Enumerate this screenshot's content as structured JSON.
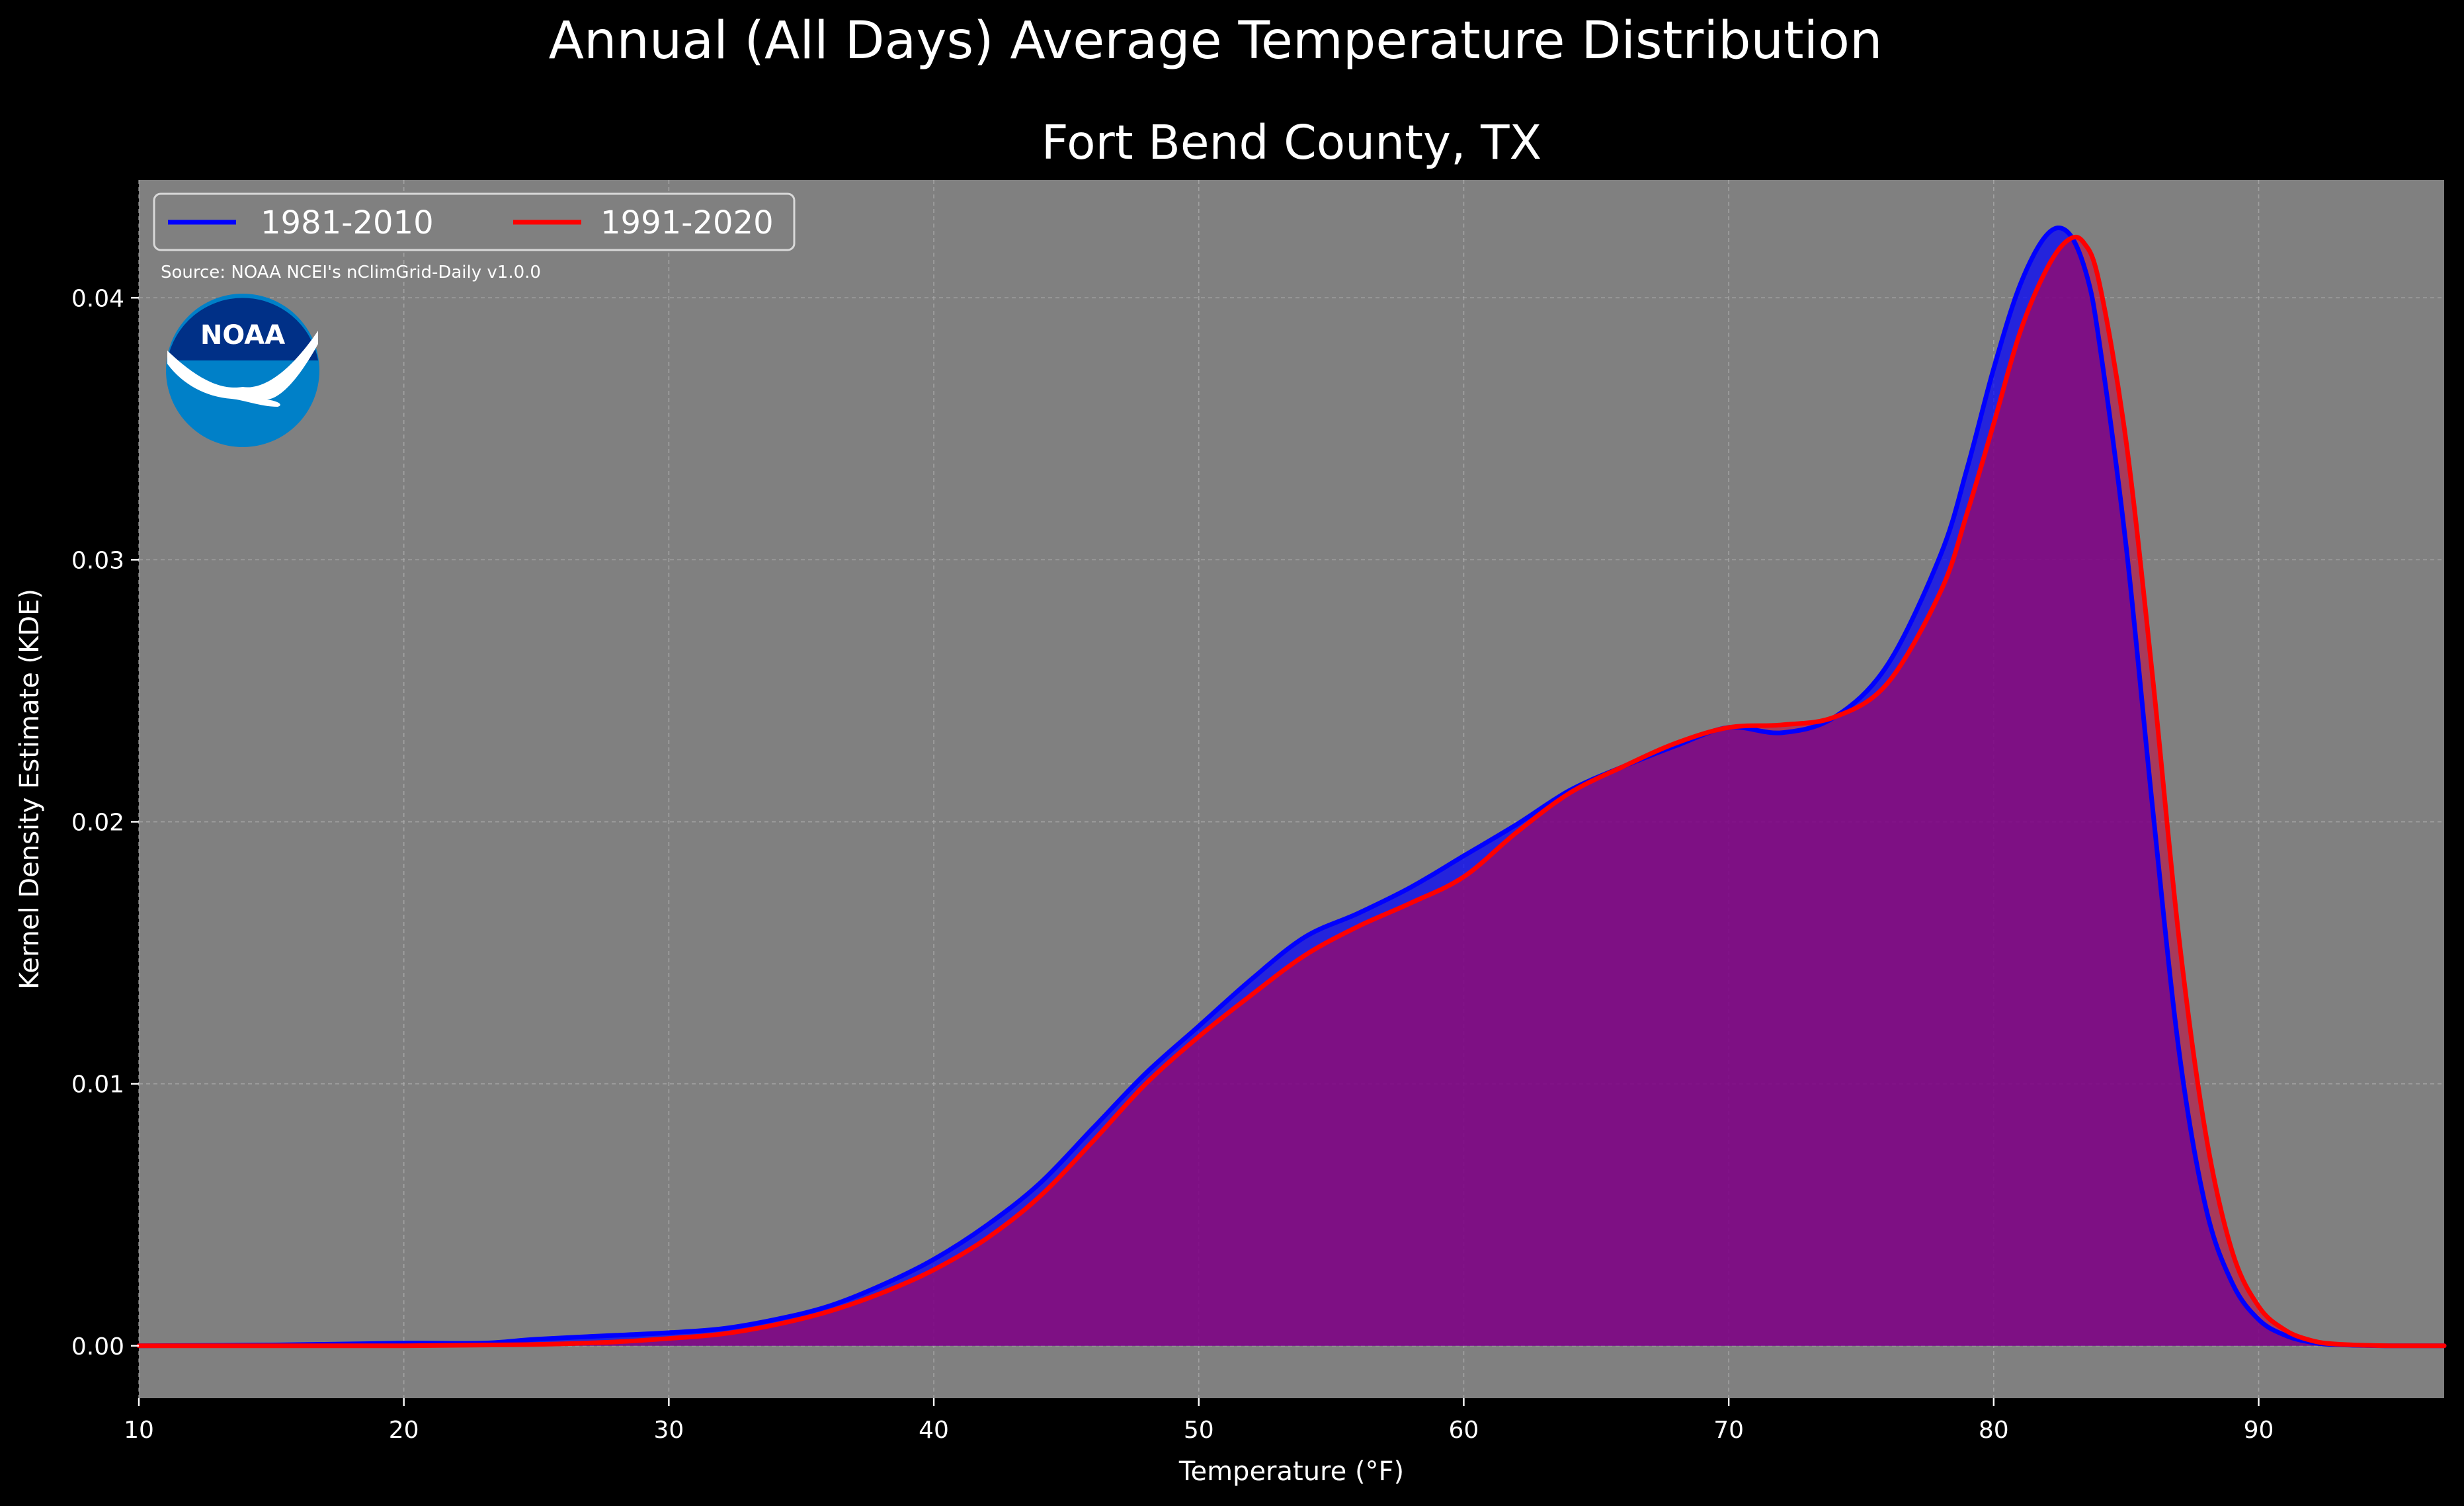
{
  "chart_data": {
    "type": "area",
    "title": "Annual (All Days) Average Temperature Distribution",
    "subtitle": "Fort Bend County, TX",
    "xlabel": "Temperature (°F)",
    "ylabel": "Kernel Density Estimate (KDE)",
    "xlim": [
      10,
      97
    ],
    "ylim": [
      -0.002,
      0.0445
    ],
    "x_ticks": [
      10,
      20,
      30,
      40,
      50,
      60,
      70,
      80,
      90
    ],
    "x_tick_labels": [
      "10",
      "20",
      "30",
      "40",
      "50",
      "60",
      "70",
      "80",
      "90"
    ],
    "y_ticks": [
      0.0,
      0.01,
      0.02,
      0.03,
      0.04
    ],
    "y_tick_labels": [
      "0.00",
      "0.01",
      "0.02",
      "0.03",
      "0.04"
    ],
    "grid": true,
    "legend_position": "top-left",
    "legend_columns": 2,
    "source_note": "Source: NOAA NCEI's nClimGrid-Daily v1.0.0",
    "logo_text": "NOAA",
    "background_color": "#000000",
    "axes_color": "#808080",
    "series": [
      {
        "name": "1981-2010",
        "color": "#0000ff",
        "fill_color": "#0000ff",
        "x": [
          10,
          15,
          20,
          23,
          25,
          28,
          30,
          32,
          34,
          36,
          38,
          40,
          42,
          44,
          46,
          48,
          50,
          52,
          54,
          56,
          58,
          60,
          62,
          64,
          66,
          68,
          70,
          72,
          74,
          76,
          78,
          79,
          80,
          81,
          82,
          82.8,
          83.5,
          84,
          85,
          86,
          87,
          88,
          89,
          90,
          91,
          92,
          93,
          95,
          97
        ],
        "values": [
          0.0,
          3e-05,
          0.0001,
          0.0001,
          0.00025,
          0.0004,
          0.0005,
          0.00065,
          0.001,
          0.0015,
          0.0023,
          0.0033,
          0.0046,
          0.0062,
          0.0083,
          0.0104,
          0.0122,
          0.014,
          0.0156,
          0.0165,
          0.0175,
          0.0187,
          0.0199,
          0.0212,
          0.0221,
          0.0229,
          0.0236,
          0.0234,
          0.024,
          0.026,
          0.0302,
          0.0335,
          0.0373,
          0.0405,
          0.0424,
          0.0425,
          0.0409,
          0.0382,
          0.0305,
          0.0205,
          0.0112,
          0.0053,
          0.0024,
          0.001,
          0.0004,
          0.00013,
          4e-05,
          0.0,
          0.0
        ]
      },
      {
        "name": "1991-2020",
        "color": "#ff0000",
        "fill_color": "#c8003c",
        "x": [
          10,
          15,
          20,
          23,
          25,
          28,
          30,
          32,
          34,
          36,
          38,
          40,
          42,
          44,
          46,
          48,
          50,
          52,
          54,
          56,
          58,
          60,
          62,
          64,
          66,
          68,
          70,
          72,
          74,
          76,
          78,
          79,
          80,
          81,
          82,
          82.8,
          83.4,
          84,
          85,
          86,
          87,
          88,
          89,
          90,
          91,
          92,
          93,
          95,
          97
        ],
        "values": [
          0.0,
          0.0,
          0.0,
          3e-05,
          5e-05,
          0.00015,
          0.00028,
          0.00045,
          0.0008,
          0.0013,
          0.002,
          0.0029,
          0.0041,
          0.0057,
          0.0078,
          0.01,
          0.0118,
          0.0134,
          0.0149,
          0.016,
          0.0169,
          0.0179,
          0.0196,
          0.0211,
          0.0221,
          0.023,
          0.0236,
          0.0237,
          0.024,
          0.0253,
          0.0288,
          0.0318,
          0.0352,
          0.0387,
          0.0411,
          0.0422,
          0.0421,
          0.0405,
          0.0345,
          0.0255,
          0.0155,
          0.0081,
          0.0036,
          0.0015,
          0.0006,
          0.0002,
          6e-05,
          0.0,
          0.0
        ]
      }
    ]
  }
}
